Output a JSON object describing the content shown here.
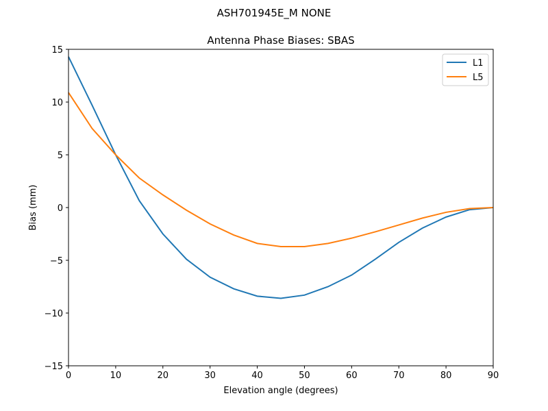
{
  "chart_data": {
    "type": "line",
    "suptitle": "ASH701945E_M    NONE",
    "title": "Antenna Phase Biases: SBAS",
    "xlabel": "Elevation angle (degrees)",
    "ylabel": "Bias (mm)",
    "xlim": [
      0,
      90
    ],
    "ylim": [
      -15,
      15
    ],
    "xticks": [
      0,
      10,
      20,
      30,
      40,
      50,
      60,
      70,
      80,
      90
    ],
    "xtick_labels": [
      "0",
      "10",
      "20",
      "30",
      "40",
      "50",
      "60",
      "70",
      "80",
      "90"
    ],
    "yticks": [
      -15,
      -10,
      -5,
      0,
      5,
      10,
      15
    ],
    "ytick_labels": [
      "−15",
      "−10",
      "−5",
      "0",
      "5",
      "10",
      "15"
    ],
    "grid": false,
    "legend_position": "top-right",
    "x": [
      0,
      5,
      10,
      15,
      20,
      25,
      30,
      35,
      40,
      45,
      50,
      55,
      60,
      65,
      70,
      75,
      80,
      85,
      90
    ],
    "series": [
      {
        "name": "L1",
        "color": "#1f77b4",
        "values": [
          14.3,
          9.7,
          5.0,
          0.65,
          -2.5,
          -4.9,
          -6.6,
          -7.7,
          -8.4,
          -8.6,
          -8.3,
          -7.5,
          -6.4,
          -4.9,
          -3.3,
          -1.95,
          -0.9,
          -0.2,
          0.0
        ]
      },
      {
        "name": "L5",
        "color": "#ff7f0e",
        "values": [
          10.9,
          7.5,
          5.0,
          2.8,
          1.2,
          -0.25,
          -1.55,
          -2.6,
          -3.4,
          -3.7,
          -3.7,
          -3.4,
          -2.9,
          -2.3,
          -1.65,
          -1.0,
          -0.45,
          -0.1,
          0.0
        ]
      }
    ]
  }
}
